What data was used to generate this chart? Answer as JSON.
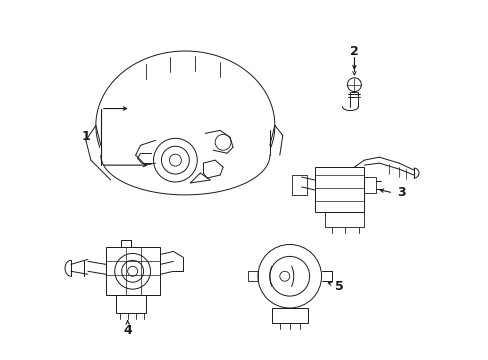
{
  "background_color": "#ffffff",
  "line_color": "#1a1a1a",
  "figure_width": 4.89,
  "figure_height": 3.6,
  "dpi": 100,
  "part1_label": "1",
  "part2_label": "2",
  "part3_label": "3",
  "part4_label": "4",
  "part5_label": "5"
}
